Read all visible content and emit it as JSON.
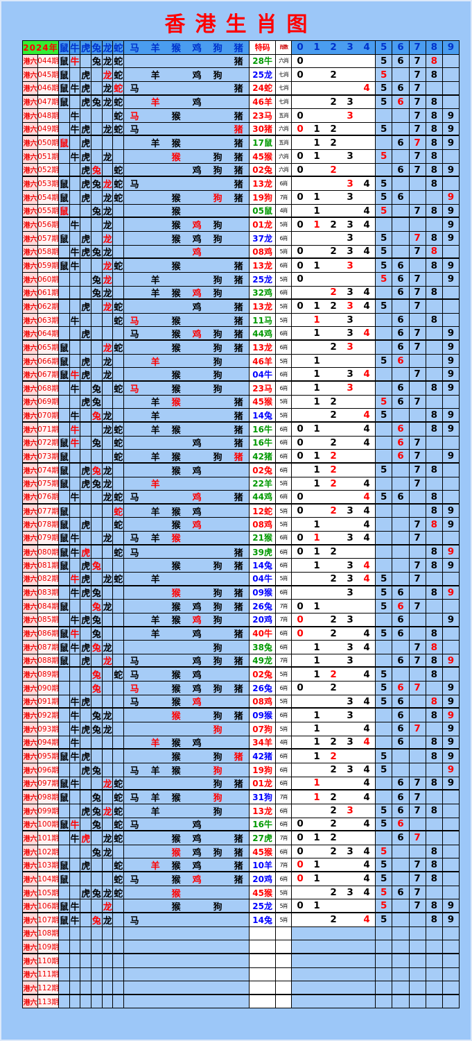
{
  "title": "香港生肖图",
  "header": {
    "year": "2024年",
    "zodiacs": [
      "鼠",
      "牛",
      "虎",
      "兔",
      "龙",
      "蛇",
      "马",
      "羊",
      "猴",
      "鸡",
      "狗",
      "猪"
    ],
    "special": "特码",
    "count": "肖数",
    "digits": [
      "0",
      "1",
      "2",
      "3",
      "4",
      "5",
      "6",
      "7",
      "8",
      "9"
    ]
  },
  "row_prefix": "港六",
  "colors": {
    "red": "#ff0000",
    "blue": "#0000ff",
    "green": "#009900",
    "black": "#000000"
  },
  "chart_data": {
    "type": "table",
    "columns": [
      "期号",
      "鼠",
      "牛",
      "虎",
      "兔",
      "龙",
      "蛇",
      "马",
      "羊",
      "猴",
      "鸡",
      "狗",
      "猪",
      "特码",
      "肖数",
      "0",
      "1",
      "2",
      "3",
      "4",
      "5",
      "6",
      "7",
      "8",
      "9"
    ],
    "legend": "m = 12 zodiac marks (.=empty, b=black, r=red-highlight); d = digit tails 0-9 (.=empty, b=black, r=red); s = special code; sc = special ball color; c = zodiac count label",
    "rows": [
      {
        "p": "044期",
        "m": "br.bbb.....b",
        "s": "28牛",
        "sc": "green",
        "c": "六肖",
        "d": "b....bbbr."
      },
      {
        "p": "045期",
        "m": "b.b.rb.b.bb.",
        "s": "25龙",
        "sc": "blue",
        "c": "七肖",
        "d": "b.b..r.bb."
      },
      {
        "p": "046期",
        "m": "bbb.brb....b",
        "s": "24蛇",
        "sc": "red",
        "c": "七肖",
        "d": "....rbbb.."
      },
      {
        "p": "047期",
        "m": "b.bbbb.r.b..",
        "s": "46羊",
        "sc": "red",
        "c": "七肖",
        "d": "..bb.brbb."
      },
      {
        "p": "048期",
        "m": ".b...br.b..b",
        "s": "23马",
        "sc": "red",
        "c": "五肖",
        "d": "b..r...bbb"
      },
      {
        "p": "049期",
        "m": ".bb.bbb....r",
        "s": "30猪",
        "sc": "red",
        "c": "六肖",
        "d": "rbb..b.bbb"
      },
      {
        "p": "050期",
        "m": "r.b....bb..b",
        "s": "17鼠",
        "sc": "green",
        "c": "五肖",
        "d": ".bb...brbb"
      },
      {
        "p": "051期",
        "m": ".bb.b...r.bb",
        "s": "45猴",
        "sc": "red",
        "c": "六肖",
        "d": "bb.b.r.bb."
      },
      {
        "p": "052期",
        "m": "..br.b...bbb",
        "s": "02兔",
        "sc": "red",
        "c": "六肖",
        "d": "b.r...bbbb"
      },
      {
        "p": "053期",
        "m": "b.bbrbb....b",
        "s": "13龙",
        "sc": "red",
        "c": "6肖",
        "d": "...rbb..b."
      },
      {
        "p": "054期",
        "m": "b.b.bb..b.rb",
        "s": "19狗",
        "sc": "red",
        "c": "7肖",
        "d": "bb.b.bb..r"
      },
      {
        "p": "055期",
        "m": "r..bb...b...",
        "s": "05鼠",
        "sc": "green",
        "c": "4肖",
        "d": ".b..br.bbb"
      },
      {
        "p": "056期",
        "m": ".b..b...brb.",
        "s": "01龙",
        "sc": "red",
        "c": "5肖",
        "d": "brbbb....b"
      },
      {
        "p": "057期",
        "m": "b.b.r...bbb.",
        "s": "37龙",
        "sc": "blue",
        "c": "6肖",
        "d": "...b.b.rbb"
      },
      {
        "p": "058期",
        "m": ".bbbb....r..",
        "s": "08鸡",
        "sc": "red",
        "c": "5肖",
        "d": "b.bbbb.br."
      },
      {
        "p": "059期",
        "m": "bb..rb..b..b",
        "s": "13龙",
        "sc": "red",
        "c": "6肖",
        "d": "bb.r.bb.bb"
      },
      {
        "p": "060期",
        "m": "...br..b..bb",
        "s": "25龙",
        "sc": "blue",
        "c": "5肖",
        "d": "b....rbb.b"
      },
      {
        "p": "061期",
        "m": "...bb..bbrb.",
        "s": "32鸡",
        "sc": "green",
        "c": "6肖",
        "d": "..rbb.bbb."
      },
      {
        "p": "062期",
        "m": "..b.rb...b.b",
        "s": "13龙",
        "sc": "red",
        "c": "5肖",
        "d": "bbbrbb.b.."
      },
      {
        "p": "063期",
        "m": ".b...br.b..b",
        "s": "11马",
        "sc": "green",
        "c": "5肖",
        "d": ".r.b..b.b."
      },
      {
        "p": "064期",
        "m": "..b...b.brbb",
        "s": "44鸡",
        "sc": "green",
        "c": "6肖",
        "d": ".b.br.bb.b"
      },
      {
        "p": "065期",
        "m": "b...rb..b.bb",
        "s": "13龙",
        "sc": "red",
        "c": "6肖",
        "d": "..br..bb.b"
      },
      {
        "p": "066期",
        "m": "b.b.b..r..b.",
        "s": "46羊",
        "sc": "red",
        "c": "5肖",
        "d": ".b...br..b"
      },
      {
        "p": "067期",
        "m": "brb.b...b.b.",
        "s": "04牛",
        "sc": "blue",
        "c": "6肖",
        "d": ".b.br..b.b"
      },
      {
        "p": "068期",
        "m": ".b.b.br.b.b.",
        "s": "23马",
        "sc": "red",
        "c": "6肖",
        "d": ".b.r..b.bb"
      },
      {
        "p": "069期",
        "m": "..bb...br..b",
        "s": "45猴",
        "sc": "red",
        "c": "5肖",
        "d": ".bb..rbb.."
      },
      {
        "p": "070期",
        "m": ".b.rb..b...b",
        "s": "14兔",
        "sc": "blue",
        "c": "5肖",
        "d": "..b.rb..bb"
      },
      {
        "p": "071期",
        "m": ".r..bb.bb..b",
        "s": "16牛",
        "sc": "green",
        "c": "6肖",
        "d": "bb..b.r.bb"
      },
      {
        "p": "072期",
        "m": "br.b.b...b.b",
        "s": "16牛",
        "sc": "green",
        "c": "6肖",
        "d": "b.b.b.rb.."
      },
      {
        "p": "073期",
        "m": "b....b.bb.br",
        "s": "42猪",
        "sc": "green",
        "c": "6肖",
        "d": "bbr...rb.b"
      },
      {
        "p": "074期",
        "m": "b.brb...bb..",
        "s": "02兔",
        "sc": "red",
        "c": "6肖",
        "d": ".br..b.bb."
      },
      {
        "p": "075期",
        "m": "b.bbb..r....",
        "s": "22羊",
        "sc": "green",
        "c": "5肖",
        "d": ".br.b..b.."
      },
      {
        "p": "076期",
        "m": ".b..bbb..r.b",
        "s": "44鸡",
        "sc": "green",
        "c": "6肖",
        "d": "b...rbb.b."
      },
      {
        "p": "077期",
        "m": "b....r.bbb..",
        "s": "12蛇",
        "sc": "red",
        "c": "5肖",
        "d": "b.rbb...bb"
      },
      {
        "p": "078期",
        "m": "b.b..b..br..",
        "s": "08鸡",
        "sc": "red",
        "c": "5肖",
        "d": ".b..b..brb"
      },
      {
        "p": "079期",
        "m": "bb..b.bbr...",
        "s": "21猴",
        "sc": "green",
        "c": "6肖",
        "d": "br.bb..b.."
      },
      {
        "p": "080期",
        "m": "bbr..bb....b",
        "s": "39虎",
        "sc": "green",
        "c": "6肖",
        "d": "bbb.....br"
      },
      {
        "p": "081期",
        "m": "b.br....b.bb",
        "s": "14兔",
        "sc": "blue",
        "c": "6肖",
        "d": ".b.br..bbb"
      },
      {
        "p": "082期",
        "m": ".rb.bb.b....",
        "s": "04牛",
        "sc": "blue",
        "c": "5肖",
        "d": "..bbrb.b.."
      },
      {
        "p": "083期",
        "m": ".bbb....r.bb",
        "s": "09猴",
        "sc": "blue",
        "c": "6肖",
        "d": "...b.bb.br"
      },
      {
        "p": "084期",
        "m": "b..rb...bbbb",
        "s": "26兔",
        "sc": "blue",
        "c": "7肖",
        "d": "bb...brb.."
      },
      {
        "p": "085期",
        "m": ".bbb...bbrb.",
        "s": "20鸡",
        "sc": "blue",
        "c": "7肖",
        "d": "r.bb..b..b"
      },
      {
        "p": "086期",
        "m": "br.b...b.b.b",
        "s": "40牛",
        "sc": "red",
        "c": "6肖",
        "d": "r.b.bbb.b."
      },
      {
        "p": "087期",
        "m": "bbbrb.....b.",
        "s": "38兔",
        "sc": "green",
        "c": "6肖",
        "d": ".b.bb..br."
      },
      {
        "p": "088期",
        "m": "b.b.r.b..bbb",
        "s": "49龙",
        "sc": "green",
        "c": "7肖",
        "d": ".b.b..bbbr"
      },
      {
        "p": "089期",
        "m": "...r.bb.bb..",
        "s": "02兔",
        "sc": "red",
        "c": "5肖",
        "d": ".br.bb..b."
      },
      {
        "p": "090期",
        "m": "...r..r.bbbb",
        "s": "26兔",
        "sc": "blue",
        "c": "6肖",
        "d": "b.b..brr.b"
      },
      {
        "p": "091期",
        "m": ".bb...b.br..",
        "s": "08鸡",
        "sc": "red",
        "c": "5肖",
        "d": "...bbbb.rb"
      },
      {
        "p": "092期",
        "m": ".b.bb...r.bb",
        "s": "09猴",
        "sc": "blue",
        "c": "6肖",
        "d": ".b.b..b.br"
      },
      {
        "p": "093期",
        "m": ".bbbb.....r.",
        "s": "07狗",
        "sc": "red",
        "c": "5肖",
        "d": ".b..b.br.b"
      },
      {
        "p": "094期",
        "m": ".b.....rbb..",
        "s": "34羊",
        "sc": "red",
        "c": "4肖",
        "d": ".bbbr.b.bb"
      },
      {
        "p": "095期",
        "m": "bbb.....b.br",
        "s": "42猪",
        "sc": "blue",
        "c": "6肖",
        "d": ".br..b..bb"
      },
      {
        "p": "096期",
        "m": "..bb..bbb.r.",
        "s": "19狗",
        "sc": "red",
        "c": "6肖",
        "d": "..bbbb...r"
      },
      {
        "p": "097期",
        "m": "bb..rb....bb",
        "s": "01龙",
        "sc": "red",
        "c": "6肖",
        "d": ".r..b.bbbb"
      },
      {
        "p": "098期",
        "m": "b..b.bbbb.r.",
        "s": "31狗",
        "sc": "blue",
        "c": "7肖",
        "d": ".rb.b.bb.."
      },
      {
        "p": "099期",
        "m": "..bbrb.b..b.",
        "s": "13龙",
        "sc": "red",
        "c": "6肖",
        "d": "..br.bbbb."
      },
      {
        "p": "100期",
        "m": "br.b.bb..b..",
        "s": "16牛",
        "sc": "green",
        "c": "6肖",
        "d": "b.b.bbr..."
      },
      {
        "p": "101期",
        "m": ".br.bb..bb.b",
        "s": "27虎",
        "sc": "green",
        "c": "7肖",
        "d": "bbb...br.."
      },
      {
        "p": "102期",
        "m": "...bb...rbbb",
        "s": "45猴",
        "sc": "red",
        "c": "6肖",
        "d": "b.bbbr..b."
      },
      {
        "p": "103期",
        "m": "b.b..b.rbb.b",
        "s": "10羊",
        "sc": "blue",
        "c": "7肖",
        "d": "rb..bb.bb."
      },
      {
        "p": "104期",
        "m": "b....bb.br.b",
        "s": "20鸡",
        "sc": "blue",
        "c": "6肖",
        "d": "rb..bb.bb."
      },
      {
        "p": "105期",
        "m": "..bbbb..r...",
        "s": "45猴",
        "sc": "red",
        "c": "5肖",
        "d": "..bbbrbb.."
      },
      {
        "p": "106期",
        "m": "bb..r...b.b.",
        "s": "25龙",
        "sc": "blue",
        "c": "5肖",
        "d": "bb...r.bbb"
      },
      {
        "p": "107期",
        "m": "bb.rb.b.....",
        "s": "14兔",
        "sc": "blue",
        "c": "5肖",
        "d": "..b.rb..bb"
      },
      {
        "p": "108期",
        "m": "............",
        "s": "",
        "sc": "",
        "c": "",
        "d": ".........."
      },
      {
        "p": "109期",
        "m": "............",
        "s": "",
        "sc": "",
        "c": "",
        "d": ".........."
      },
      {
        "p": "110期",
        "m": "............",
        "s": "",
        "sc": "",
        "c": "",
        "d": ".........."
      },
      {
        "p": "111期",
        "m": "............",
        "s": "",
        "sc": "",
        "c": "",
        "d": ".........."
      },
      {
        "p": "112期",
        "m": "............",
        "s": "",
        "sc": "",
        "c": "",
        "d": ".........."
      },
      {
        "p": "113期",
        "m": "............",
        "s": "",
        "sc": "",
        "c": "",
        "d": ".........."
      }
    ]
  }
}
